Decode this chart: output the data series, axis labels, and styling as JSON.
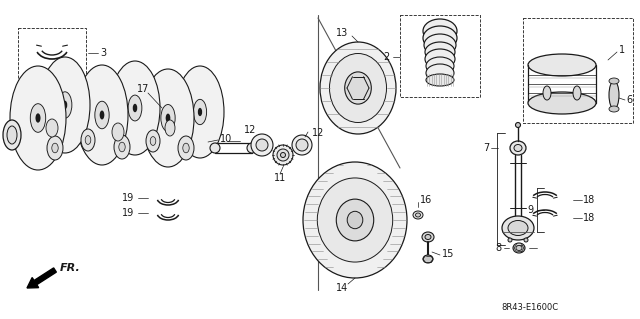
{
  "bg_color": "#ffffff",
  "line_color": "#1a1a1a",
  "diagram_code": "8R43-E1600C",
  "figsize": [
    6.4,
    3.19
  ],
  "dpi": 100
}
